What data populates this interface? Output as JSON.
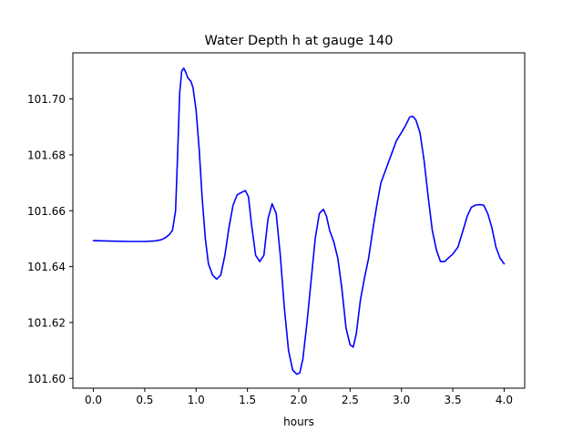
{
  "chart_data": {
    "type": "line",
    "title": "Water Depth h at gauge 140",
    "xlabel": "hours",
    "ylabel": "",
    "xlim": [
      -0.2,
      4.2
    ],
    "ylim": [
      101.5965,
      101.7165
    ],
    "xticks": [
      0.0,
      0.5,
      1.0,
      1.5,
      2.0,
      2.5,
      3.0,
      3.5,
      4.0
    ],
    "xtick_labels": [
      "0.0",
      "0.5",
      "1.0",
      "1.5",
      "2.0",
      "2.5",
      "3.0",
      "3.5",
      "4.0"
    ],
    "yticks": [
      101.6,
      101.62,
      101.64,
      101.66,
      101.68,
      101.7
    ],
    "ytick_labels": [
      "101.60",
      "101.62",
      "101.64",
      "101.66",
      "101.68",
      "101.70"
    ],
    "grid": false,
    "legend": "none",
    "series": [
      {
        "color": "#0000ff",
        "x": [
          0.0,
          0.2,
          0.35,
          0.5,
          0.6,
          0.66,
          0.7,
          0.74,
          0.77,
          0.8,
          0.82,
          0.84,
          0.86,
          0.88,
          0.9,
          0.92,
          0.95,
          0.97,
          1.0,
          1.03,
          1.06,
          1.09,
          1.12,
          1.16,
          1.2,
          1.24,
          1.28,
          1.32,
          1.36,
          1.4,
          1.44,
          1.48,
          1.51,
          1.54,
          1.58,
          1.62,
          1.66,
          1.7,
          1.74,
          1.78,
          1.82,
          1.86,
          1.9,
          1.94,
          1.98,
          2.01,
          2.04,
          2.08,
          2.12,
          2.16,
          2.2,
          2.24,
          2.27,
          2.3,
          2.34,
          2.38,
          2.42,
          2.46,
          2.5,
          2.53,
          2.56,
          2.6,
          2.64,
          2.68,
          2.72,
          2.76,
          2.8,
          2.85,
          2.9,
          2.95,
          3.0,
          3.04,
          3.08,
          3.11,
          3.14,
          3.18,
          3.22,
          3.26,
          3.3,
          3.34,
          3.38,
          3.42,
          3.46,
          3.5,
          3.55,
          3.6,
          3.64,
          3.68,
          3.72,
          3.76,
          3.8,
          3.84,
          3.88,
          3.92,
          3.96,
          4.0
        ],
        "values": [
          101.6493,
          101.6491,
          101.649,
          101.649,
          101.6492,
          101.6496,
          101.6503,
          101.6515,
          101.653,
          101.66,
          101.68,
          101.702,
          101.71,
          101.711,
          101.7095,
          101.7075,
          101.7063,
          101.704,
          101.696,
          101.682,
          101.664,
          101.65,
          101.641,
          101.637,
          101.6355,
          101.637,
          101.644,
          101.654,
          101.662,
          101.6657,
          101.6665,
          101.6672,
          101.665,
          101.655,
          101.644,
          101.6418,
          101.644,
          101.657,
          101.6625,
          101.659,
          101.644,
          101.625,
          101.61,
          101.603,
          101.6015,
          101.602,
          101.607,
          101.62,
          101.635,
          101.65,
          101.659,
          101.6605,
          101.658,
          101.653,
          101.649,
          101.643,
          101.632,
          101.618,
          101.612,
          101.6112,
          101.616,
          101.628,
          101.636,
          101.643,
          101.653,
          101.662,
          101.67,
          101.675,
          101.68,
          101.685,
          101.688,
          101.6905,
          101.6935,
          101.6938,
          101.6925,
          101.688,
          101.678,
          101.665,
          101.653,
          101.646,
          101.6418,
          101.6418,
          101.6432,
          101.6445,
          101.647,
          101.653,
          101.658,
          101.6612,
          101.662,
          101.6622,
          101.662,
          101.659,
          101.654,
          101.647,
          101.643,
          101.641
        ]
      }
    ]
  }
}
